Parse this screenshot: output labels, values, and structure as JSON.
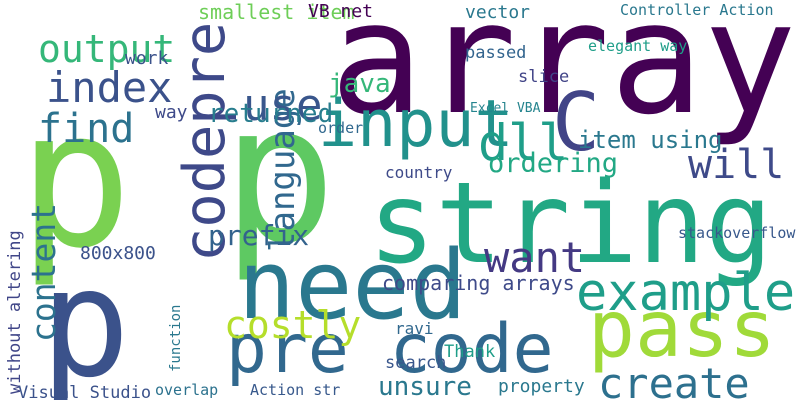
{
  "words": [
    {
      "text": "array",
      "color": "#440154"
    },
    {
      "text": "p",
      "color": "#7ad151"
    },
    {
      "text": "p",
      "color": "#5ec962"
    },
    {
      "text": "p",
      "color": "#3b528b"
    },
    {
      "text": "string",
      "color": "#22a884"
    },
    {
      "text": "need",
      "color": "#2a788e"
    },
    {
      "text": "pass",
      "color": "#a0da39"
    },
    {
      "text": "pre code",
      "color": "#31688e"
    },
    {
      "text": "input",
      "color": "#21918c"
    },
    {
      "text": "C",
      "color": "#414487"
    },
    {
      "text": "dll",
      "color": "#1f9e89"
    },
    {
      "text": "example",
      "color": "#1f9e89"
    },
    {
      "text": "codepre",
      "color": "#3e4989"
    },
    {
      "text": "language",
      "color": "#31688e"
    },
    {
      "text": "content",
      "color": "#2c728e"
    },
    {
      "text": "without altering",
      "color": "#404688"
    },
    {
      "text": "output",
      "color": "#35b779"
    },
    {
      "text": "index",
      "color": "#3b528b"
    },
    {
      "text": "find",
      "color": "#2c728e"
    },
    {
      "text": "use",
      "color": "#39568c"
    },
    {
      "text": "want",
      "color": "#443983"
    },
    {
      "text": "costly",
      "color": "#b5de2b"
    },
    {
      "text": "create",
      "color": "#2d708e"
    },
    {
      "text": "will",
      "color": "#3e4a89"
    },
    {
      "text": "java",
      "color": "#35b779"
    },
    {
      "text": "returned",
      "color": "#287d8e"
    },
    {
      "text": "prefix",
      "color": "#33638d"
    },
    {
      "text": "ordering",
      "color": "#22a884"
    },
    {
      "text": "item using",
      "color": "#2a788e"
    },
    {
      "text": "unsure",
      "color": "#2a788e"
    },
    {
      "text": "Visual Studio",
      "color": "#3b528b"
    },
    {
      "text": "smallest item",
      "color": "#6ece58"
    },
    {
      "text": "VB net",
      "color": "#440154"
    },
    {
      "text": "Controller Action",
      "color": "#2a788e"
    },
    {
      "text": "comparing arrays",
      "color": "#3e4a89"
    },
    {
      "text": "Excel VBA",
      "color": "#25848e"
    },
    {
      "text": "stackoverflow",
      "color": "#38588c"
    },
    {
      "text": "800x800",
      "color": "#3b528b"
    },
    {
      "text": "vector",
      "color": "#2a788e"
    },
    {
      "text": "elegant way",
      "color": "#1f9e89"
    },
    {
      "text": "passed",
      "color": "#32648e"
    },
    {
      "text": "slice",
      "color": "#414487"
    },
    {
      "text": "property",
      "color": "#2a788e"
    },
    {
      "text": "Thank",
      "color": "#1f9e89"
    },
    {
      "text": "search",
      "color": "#39568c"
    },
    {
      "text": "work",
      "color": "#3b528b"
    },
    {
      "text": "way",
      "color": "#3e4a89"
    },
    {
      "text": "order",
      "color": "#31688e"
    },
    {
      "text": "country",
      "color": "#3e4a89"
    },
    {
      "text": "function",
      "color": "#2a788e"
    },
    {
      "text": "ravi",
      "color": "#31688e"
    },
    {
      "text": "Action str",
      "color": "#38598c"
    },
    {
      "text": "overlap",
      "color": "#2c728e"
    }
  ]
}
